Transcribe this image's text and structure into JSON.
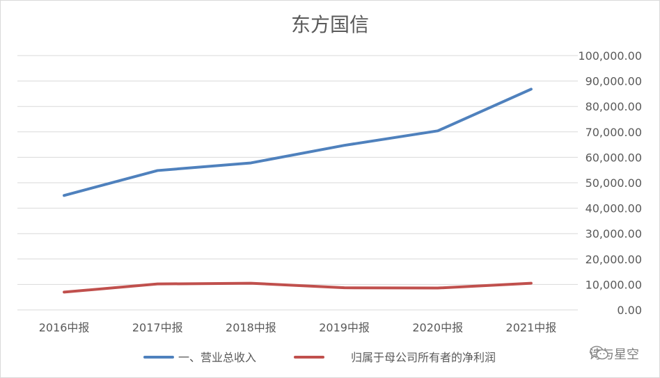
{
  "chart_data": {
    "type": "line",
    "title": "东方国信",
    "categories": [
      "2016中报",
      "2017中报",
      "2018中报",
      "2019中报",
      "2020中报",
      "2021中报"
    ],
    "series": [
      {
        "name": "一、营业总收入",
        "color": "#4f81bd",
        "values": [
          45000,
          54800,
          57800,
          64700,
          70400,
          86800
        ]
      },
      {
        "name": "归属于母公司所有者的净利润",
        "color": "#c0504d",
        "values": [
          7000,
          10200,
          10500,
          8700,
          8600,
          10500
        ]
      }
    ],
    "ylim": [
      0,
      100000
    ],
    "yticks": [
      "0.00",
      "10,000.00",
      "20,000.00",
      "30,000.00",
      "40,000.00",
      "50,000.00",
      "60,000.00",
      "70,000.00",
      "80,000.00",
      "90,000.00",
      "100,000.00"
    ],
    "grid": true,
    "legend": "bottom"
  },
  "watermark": {
    "text": "诗与星空",
    "icon": "wechat-icon"
  }
}
